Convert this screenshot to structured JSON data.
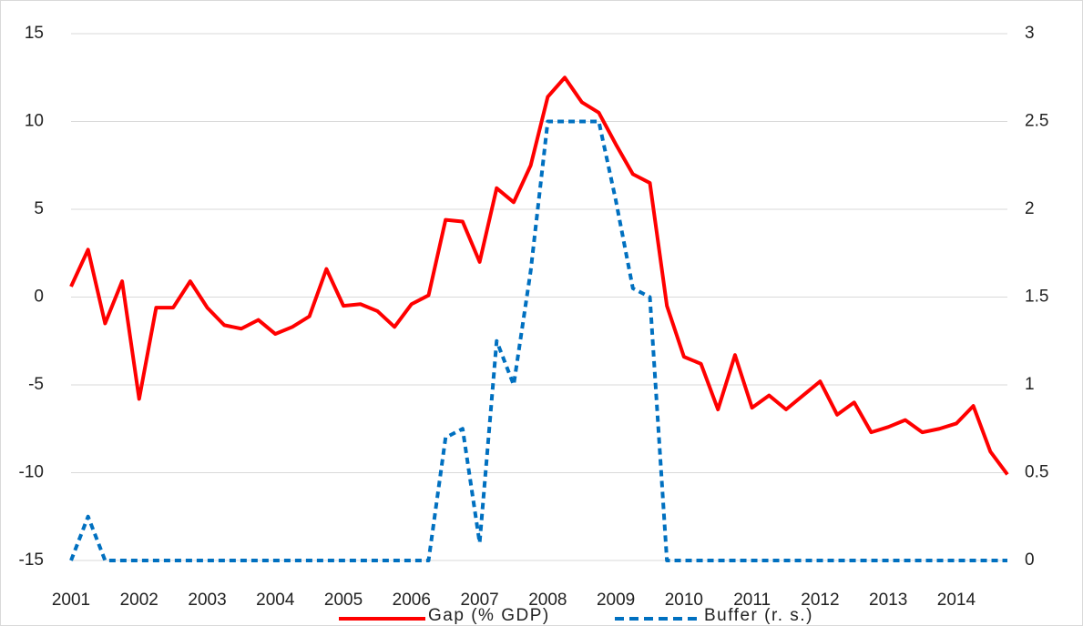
{
  "chart_data": {
    "type": "line",
    "x": [
      2001,
      2001.25,
      2001.5,
      2001.75,
      2002,
      2002.25,
      2002.5,
      2002.75,
      2003,
      2003.25,
      2003.5,
      2003.75,
      2004,
      2004.25,
      2004.5,
      2004.75,
      2005,
      2005.25,
      2005.5,
      2005.75,
      2006,
      2006.25,
      2006.5,
      2006.75,
      2007,
      2007.25,
      2007.5,
      2007.75,
      2008,
      2008.25,
      2008.5,
      2008.75,
      2009,
      2009.25,
      2009.5,
      2009.75,
      2010,
      2010.25,
      2010.5,
      2010.75,
      2011,
      2011.25,
      2011.5,
      2011.75,
      2012,
      2012.25,
      2012.5,
      2012.75,
      2013,
      2013.25,
      2013.5,
      2013.75,
      2014,
      2014.25,
      2014.5,
      2014.75
    ],
    "xlim": [
      2001,
      2014.75
    ],
    "xticks": [
      2001,
      2002,
      2003,
      2004,
      2005,
      2006,
      2007,
      2008,
      2009,
      2010,
      2011,
      2012,
      2013,
      2014
    ],
    "ylim": [
      -15,
      15
    ],
    "yticks": [
      -15,
      -10,
      -5,
      0,
      5,
      10,
      15
    ],
    "y2lim": [
      0,
      3
    ],
    "y2ticks": [
      0,
      0.5,
      1,
      1.5,
      2,
      2.5,
      3
    ],
    "grid": true,
    "legend": "bottom",
    "series": [
      {
        "name": "Gap (% GDP)",
        "color": "#ff0000",
        "style": "solid",
        "values": [
          0.6,
          2.7,
          -1.5,
          0.9,
          -5.8,
          -0.6,
          -0.6,
          0.9,
          -0.6,
          -1.6,
          -1.8,
          -1.3,
          -2.1,
          -1.7,
          -1.1,
          1.6,
          -0.5,
          -0.4,
          -0.8,
          -1.7,
          -0.4,
          0.1,
          4.4,
          4.3,
          2.0,
          6.2,
          5.4,
          7.5,
          11.4,
          12.5,
          11.1,
          10.5,
          8.7,
          7.0,
          6.5,
          -0.5,
          -3.4,
          -3.8,
          -6.4,
          -3.3,
          -6.3,
          -5.6,
          -6.4,
          -5.6,
          -4.8,
          -6.7,
          -6.0,
          -7.7,
          -7.4,
          -7.0,
          -7.7,
          -7.5,
          -7.2,
          -6.2,
          -8.8,
          -10.1
        ]
      },
      {
        "name": "Buffer (r. s.)",
        "color": "#0070c0",
        "style": "dashed",
        "axis": "y2",
        "values": [
          0,
          0.25,
          0,
          0,
          0,
          0,
          0,
          0,
          0,
          0,
          0,
          0,
          0,
          0,
          0,
          0,
          0,
          0,
          0,
          0,
          0,
          0,
          0.7,
          0.75,
          0.1,
          1.25,
          1.0,
          1.65,
          2.5,
          2.5,
          2.5,
          2.5,
          2.05,
          1.55,
          1.5,
          0,
          0,
          0,
          0,
          0,
          0,
          0,
          0,
          0,
          0,
          0,
          0,
          0,
          0,
          0,
          0,
          0,
          0,
          0,
          0,
          0
        ]
      }
    ]
  }
}
